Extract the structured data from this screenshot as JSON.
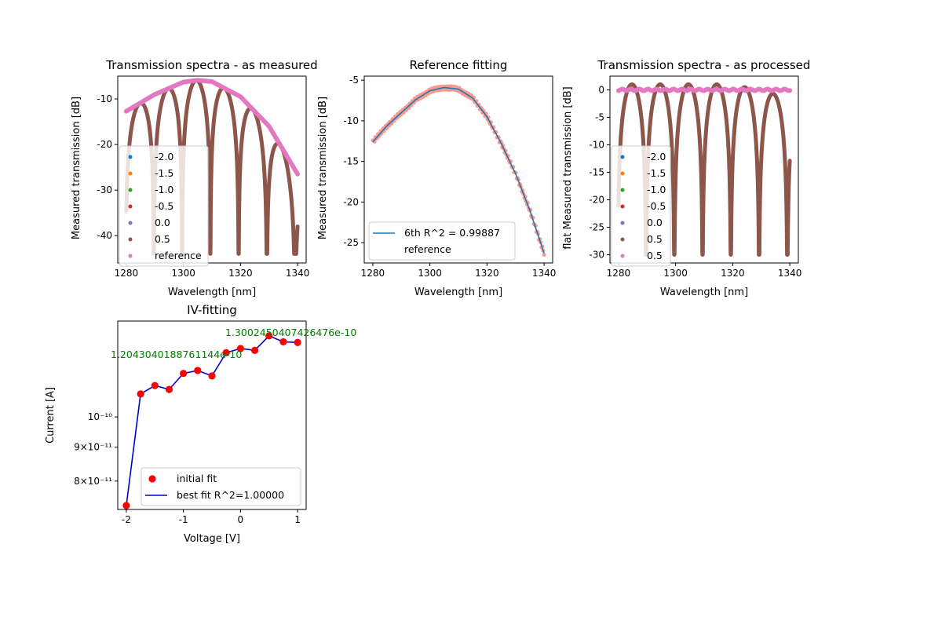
{
  "colors": {
    "c0": "#1f77b4",
    "c1": "#ff7f0e",
    "c2": "#2ca02c",
    "c3": "#d62728",
    "c4": "#9467bd",
    "c5": "#8c564b",
    "c6": "#e377c2",
    "red": "#ff0000",
    "blue": "#0000cd",
    "green": "#008000",
    "refpoints": "#fa8072"
  },
  "chart_data": [
    {
      "type": "scatter",
      "title": "Transmission spectra - as measured",
      "xlabel": "Wavelength [nm]",
      "ylabel": "Measured transmission [dB]",
      "xlim": [
        1277,
        1343
      ],
      "ylim": [
        -46,
        -5
      ],
      "xticks": [
        1280,
        1300,
        1320,
        1340
      ],
      "yticks": [
        -40,
        -30,
        -20,
        -10
      ],
      "legend_loc": "lower left",
      "legend": [
        "-2.0",
        "-1.5",
        "-1.0",
        "-0.5",
        "0.0",
        "0.5",
        "reference"
      ],
      "fringes": {
        "fsr_nm": 9.9,
        "center_nm": 1304.5,
        "envelope_peak_db": -6.0,
        "notch_depth_db": -37,
        "nulls_nm": [
          1280,
          1289.5,
          1298.5,
          1308.5,
          1318.5,
          1328.5,
          1338.5
        ]
      },
      "reference": {
        "x": [
          1280,
          1290,
          1300,
          1305,
          1310,
          1320,
          1330,
          1340
        ],
        "y": [
          -12.7,
          -9.0,
          -6.3,
          -5.9,
          -6.2,
          -9.5,
          -16.0,
          -26.5
        ]
      }
    },
    {
      "type": "line",
      "title": "Reference fitting",
      "xlabel": "Wavelength [nm]",
      "ylabel": "Measured transmission [dB]",
      "xlim": [
        1277,
        1343
      ],
      "ylim": [
        -27.5,
        -4.5
      ],
      "xticks": [
        1280,
        1300,
        1320,
        1340
      ],
      "yticks": [
        -25,
        -20,
        -15,
        -10,
        -5
      ],
      "legend_loc": "lower left",
      "legend": [
        "6th R^2 = 0.99887",
        "reference"
      ],
      "series": [
        {
          "name": "6th R^2 = 0.99887",
          "x": [
            1280,
            1285,
            1290,
            1295,
            1300,
            1305,
            1310,
            1315,
            1320,
            1325,
            1330,
            1335,
            1340
          ],
          "y": [
            -12.6,
            -10.6,
            -9.0,
            -7.4,
            -6.3,
            -5.9,
            -6.1,
            -7.2,
            -9.5,
            -12.8,
            -16.5,
            -21.0,
            -26.3
          ]
        }
      ]
    },
    {
      "type": "scatter",
      "title": "Transmission spectra - as processed",
      "xlabel": "Wavelength [nm]",
      "ylabel": "flat Measured transmission [dB]",
      "xlim": [
        1277,
        1343
      ],
      "ylim": [
        -31.5,
        2.5
      ],
      "xticks": [
        1280,
        1300,
        1320,
        1340
      ],
      "yticks": [
        -30,
        -25,
        -20,
        -15,
        -10,
        -5,
        0
      ],
      "legend_loc": "lower left",
      "legend": [
        "-2.0",
        "-1.5",
        "-1.0",
        "-0.5",
        "0.0",
        "0.5",
        "0.5"
      ]
    },
    {
      "type": "line",
      "title": "IV-fitting",
      "xlabel": "Voltage [V]",
      "ylabel": "Current [A]",
      "yscale": "log",
      "xlim": [
        -2.15,
        1.15
      ],
      "ylim": [
        7.25e-11,
        1.395e-10
      ],
      "xticks": [
        -2,
        -1,
        0,
        1
      ],
      "yticks": [
        8e-11,
        9e-11,
        1e-10
      ],
      "ytick_labels": [
        "8×10⁻¹¹",
        "9×10⁻¹¹",
        "10⁻¹⁰"
      ],
      "legend_loc": "lower right",
      "legend": [
        "initial fit",
        "best fit R^2=1.00000"
      ],
      "annotations": [
        "1.3002450407426476e-10",
        "1.2043040188761144e-10"
      ],
      "x": [
        -2,
        -1.75,
        -1.5,
        -1.25,
        -1,
        -0.75,
        -0.5,
        -0.25,
        0,
        0.25,
        0.5,
        0.75,
        1
      ],
      "initial_fit": [
        7.35e-11,
        1.083e-10,
        1.115e-10,
        1.1e-10,
        1.163e-10,
        1.175e-10,
        1.153e-10,
        1.25e-10,
        1.268e-10,
        1.26e-10,
        1.325e-10,
        1.298e-10,
        1.295e-10
      ],
      "best_fit": [
        7.35e-11,
        1.083e-10,
        1.115e-10,
        1.1e-10,
        1.163e-10,
        1.175e-10,
        1.153e-10,
        1.25e-10,
        1.268e-10,
        1.26e-10,
        1.325e-10,
        1.298e-10,
        1.295e-10
      ]
    }
  ]
}
